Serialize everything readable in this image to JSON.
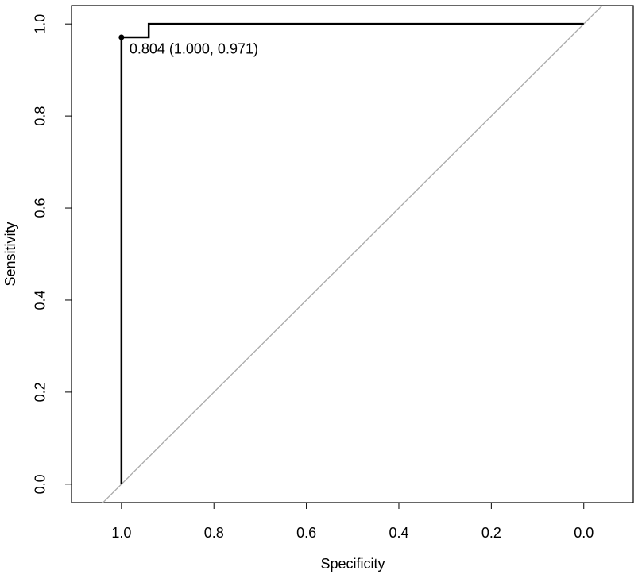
{
  "chart_data": {
    "type": "line",
    "x_label": "Specificity",
    "y_label": "Sensitivity",
    "xlim": [
      1.108,
      -0.107
    ],
    "ylim": [
      -0.04,
      1.04
    ],
    "xticks": [
      {
        "value": 1,
        "label": "1.0"
      },
      0.8,
      0.6,
      0.4,
      0.2,
      {
        "value": 0,
        "label": "0.0"
      }
    ],
    "yticks": [
      {
        "value": 0,
        "label": "0.0"
      },
      0.2,
      0.4,
      0.6,
      0.8,
      {
        "value": 1,
        "label": "1.0"
      }
    ],
    "x": [
      1.0,
      1.0,
      0.941,
      0.941,
      0.0
    ],
    "series": [
      {
        "color": "#000000",
        "values": [
          0.0,
          0.971,
          0.971,
          1.0,
          1.0
        ]
      }
    ],
    "diagonal": true,
    "diagonal_color": "#aaaaaa",
    "annotation": {
      "text": "0.804 (1.000, 0.971)",
      "x": 1.0,
      "y": 0.971
    }
  }
}
